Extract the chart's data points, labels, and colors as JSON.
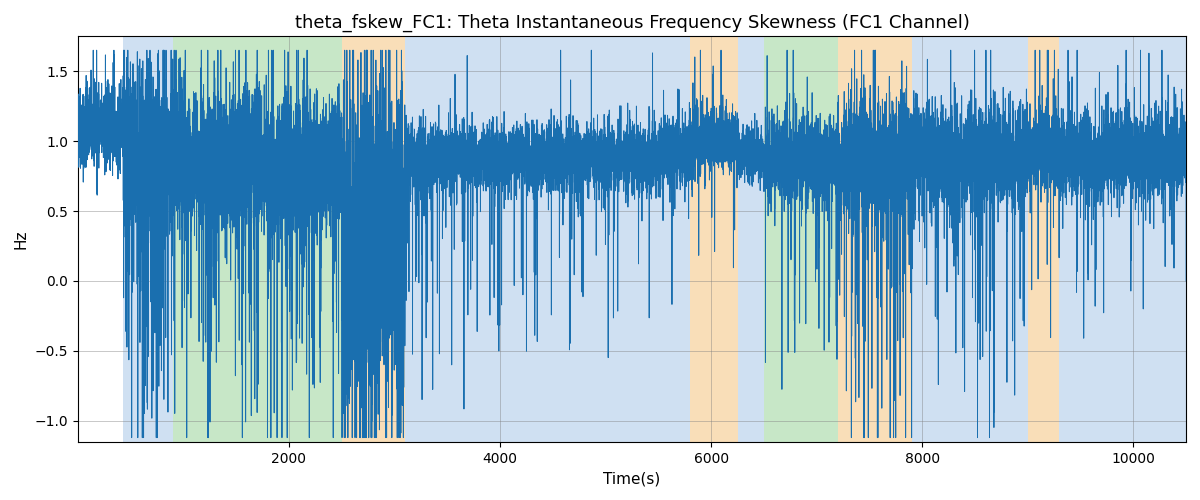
{
  "title": "theta_fskew_FC1: Theta Instantaneous Frequency Skewness (FC1 Channel)",
  "xlabel": "Time(s)",
  "ylabel": "Hz",
  "xlim": [
    0,
    10500
  ],
  "ylim": [
    -1.15,
    1.75
  ],
  "line_color": "#1a6faf",
  "line_width": 0.7,
  "bg_color": "#ffffff",
  "regions": [
    {
      "start": 430,
      "end": 900,
      "color": "#a8c8e8",
      "alpha": 0.55
    },
    {
      "start": 900,
      "end": 2500,
      "color": "#90d090",
      "alpha": 0.5
    },
    {
      "start": 2500,
      "end": 3100,
      "color": "#f5c98a",
      "alpha": 0.6
    },
    {
      "start": 3100,
      "end": 5500,
      "color": "#a8c8e8",
      "alpha": 0.55
    },
    {
      "start": 5500,
      "end": 5800,
      "color": "#a8c8e8",
      "alpha": 0.55
    },
    {
      "start": 5800,
      "end": 6250,
      "color": "#f5c98a",
      "alpha": 0.6
    },
    {
      "start": 6250,
      "end": 6500,
      "color": "#a8c8e8",
      "alpha": 0.55
    },
    {
      "start": 6500,
      "end": 7200,
      "color": "#90d090",
      "alpha": 0.5
    },
    {
      "start": 7200,
      "end": 7900,
      "color": "#f5c98a",
      "alpha": 0.6
    },
    {
      "start": 7900,
      "end": 9000,
      "color": "#a8c8e8",
      "alpha": 0.55
    },
    {
      "start": 9000,
      "end": 9300,
      "color": "#f5c98a",
      "alpha": 0.6
    },
    {
      "start": 9300,
      "end": 10500,
      "color": "#a8c8e8",
      "alpha": 0.55
    }
  ],
  "seed": 42,
  "n_points": 15000,
  "title_fontsize": 13,
  "xticks": [
    2000,
    4000,
    6000,
    8000,
    10000
  ],
  "yticks": [
    -1.0,
    -0.5,
    0.0,
    0.5,
    1.0,
    1.5
  ]
}
